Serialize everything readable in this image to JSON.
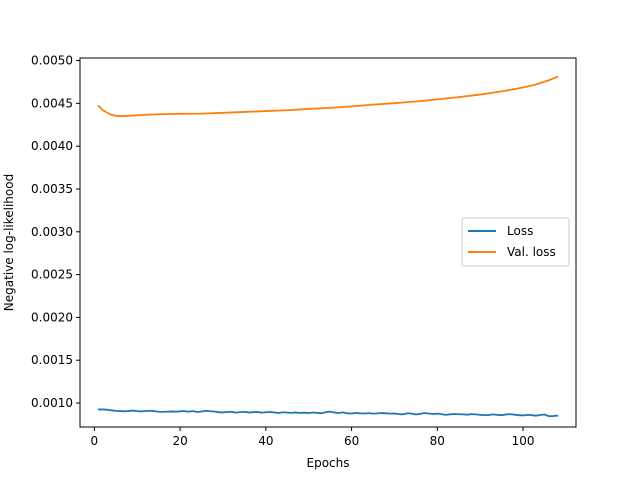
{
  "chart_data": {
    "type": "line",
    "title": "",
    "xlabel": "Epochs",
    "ylabel": "Negative log-likelihood",
    "xlim": [
      -3.35,
      112.35
    ],
    "ylim": [
      0.00072,
      0.00503
    ],
    "xticks": [
      0,
      20,
      40,
      60,
      80,
      100
    ],
    "yticks": [
      0.001,
      0.0015,
      0.002,
      0.0025,
      0.003,
      0.0035,
      0.004,
      0.0045,
      0.005
    ],
    "ytick_labels": [
      "0.0010",
      "0.0015",
      "0.0020",
      "0.0025",
      "0.0030",
      "0.0035",
      "0.0040",
      "0.0045",
      "0.0050"
    ],
    "grid": false,
    "legend_position": "center-right",
    "series": [
      {
        "name": "Loss",
        "color": "#1f77b4",
        "x": [
          1,
          2,
          3,
          4,
          5,
          6,
          7,
          8,
          9,
          10,
          11,
          12,
          13,
          14,
          15,
          16,
          17,
          18,
          19,
          20,
          21,
          22,
          23,
          24,
          25,
          26,
          27,
          28,
          29,
          30,
          31,
          32,
          33,
          34,
          35,
          36,
          37,
          38,
          39,
          40,
          41,
          42,
          43,
          44,
          45,
          46,
          47,
          48,
          49,
          50,
          51,
          52,
          53,
          54,
          55,
          56,
          57,
          58,
          59,
          60,
          61,
          62,
          63,
          64,
          65,
          66,
          67,
          68,
          69,
          70,
          71,
          72,
          73,
          74,
          75,
          76,
          77,
          78,
          79,
          80,
          81,
          82,
          83,
          84,
          85,
          86,
          87,
          88,
          89,
          90,
          91,
          92,
          93,
          94,
          95,
          96,
          97,
          98,
          99,
          100,
          101,
          102,
          103,
          104,
          105,
          106,
          107,
          108
        ],
        "y": [
          0.000925,
          0.000925,
          0.000922,
          0.000915,
          0.000908,
          0.000906,
          0.000903,
          0.000906,
          0.000912,
          0.000905,
          0.000902,
          0.000907,
          0.00091,
          0.000906,
          0.000898,
          0.000897,
          0.0009,
          0.000902,
          0.000899,
          0.000903,
          0.000905,
          0.000899,
          0.000906,
          0.000895,
          0.000901,
          0.00091,
          0.000904,
          0.000901,
          0.000893,
          0.00089,
          0.000895,
          0.000898,
          0.000888,
          0.000894,
          0.000897,
          0.00089,
          0.000893,
          0.000896,
          0.000888,
          0.000892,
          0.000895,
          0.000889,
          0.000884,
          0.000892,
          0.000888,
          0.000885,
          0.00089,
          0.000884,
          0.000887,
          0.000883,
          0.000889,
          0.000885,
          0.00088,
          0.000893,
          0.0009,
          0.000889,
          0.000883,
          0.000891,
          0.00088,
          0.000878,
          0.000884,
          0.00088,
          0.000878,
          0.000882,
          0.000876,
          0.000879,
          0.000883,
          0.00088,
          0.000876,
          0.000878,
          0.00087,
          0.000868,
          0.000881,
          0.000876,
          0.000866,
          0.000874,
          0.000884,
          0.000878,
          0.000872,
          0.000876,
          0.00087,
          0.000862,
          0.000868,
          0.000872,
          0.000869,
          0.000867,
          0.000864,
          0.00087,
          0.000867,
          0.000862,
          0.000858,
          0.00086,
          0.000867,
          0.000862,
          0.000858,
          0.000866,
          0.00087,
          0.000864,
          0.000858,
          0.000855,
          0.000862,
          0.000858,
          0.000852,
          0.00086,
          0.000866,
          0.000846,
          0.000848,
          0.000852
        ]
      },
      {
        "name": "Val. loss",
        "color": "#ff7f0e",
        "x": [
          1,
          2,
          3,
          4,
          5,
          6,
          7,
          8,
          10,
          12,
          15,
          20,
          25,
          30,
          35,
          40,
          45,
          50,
          55,
          60,
          65,
          70,
          75,
          80,
          85,
          90,
          95,
          100,
          103,
          106,
          108
        ],
        "y": [
          0.00447,
          0.00442,
          0.00439,
          0.004365,
          0.004355,
          0.004352,
          0.004352,
          0.004355,
          0.004361,
          0.004367,
          0.004373,
          0.004378,
          0.00438,
          0.00439,
          0.0044,
          0.00441,
          0.00442,
          0.004435,
          0.004447,
          0.004465,
          0.004485,
          0.004502,
          0.004522,
          0.004547,
          0.004573,
          0.004603,
          0.00464,
          0.004685,
          0.00472,
          0.00477,
          0.00481
        ]
      }
    ]
  }
}
